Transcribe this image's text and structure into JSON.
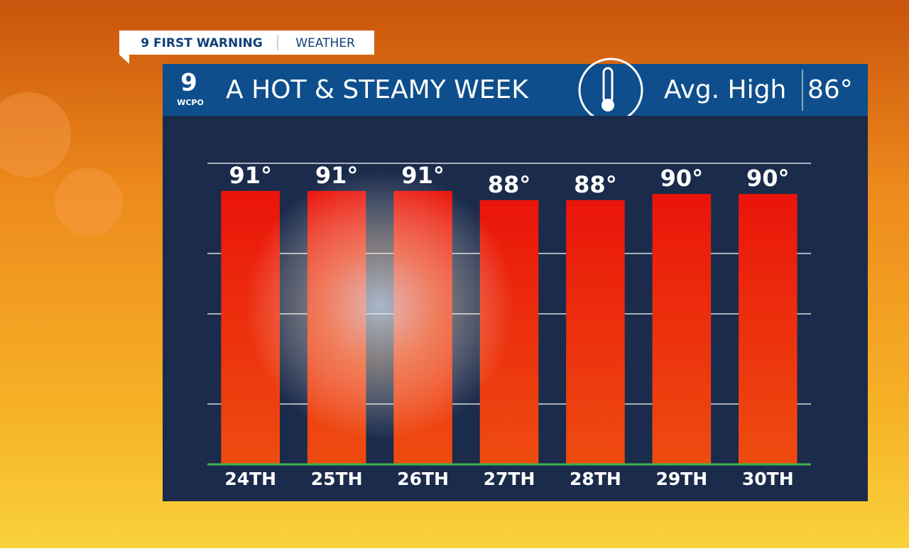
{
  "header": {
    "tag": "9 FIRST WARNING",
    "tag_section": "WEATHER",
    "logo": "9",
    "logo_station": "WCPO",
    "title": "A HOT & STEAMY WEEK",
    "avg_label": "Avg. High",
    "avg_value": "86°"
  },
  "chart_data": {
    "type": "bar",
    "categories": [
      "24TH",
      "25TH",
      "26TH",
      "27TH",
      "28TH",
      "29TH",
      "30TH"
    ],
    "values": [
      91,
      91,
      91,
      88,
      88,
      90,
      90
    ],
    "value_labels": [
      "91°",
      "91°",
      "91°",
      "88°",
      "88°",
      "90°",
      "90°"
    ],
    "color": "#e8200c",
    "ylim": [
      2,
      100
    ]
  }
}
